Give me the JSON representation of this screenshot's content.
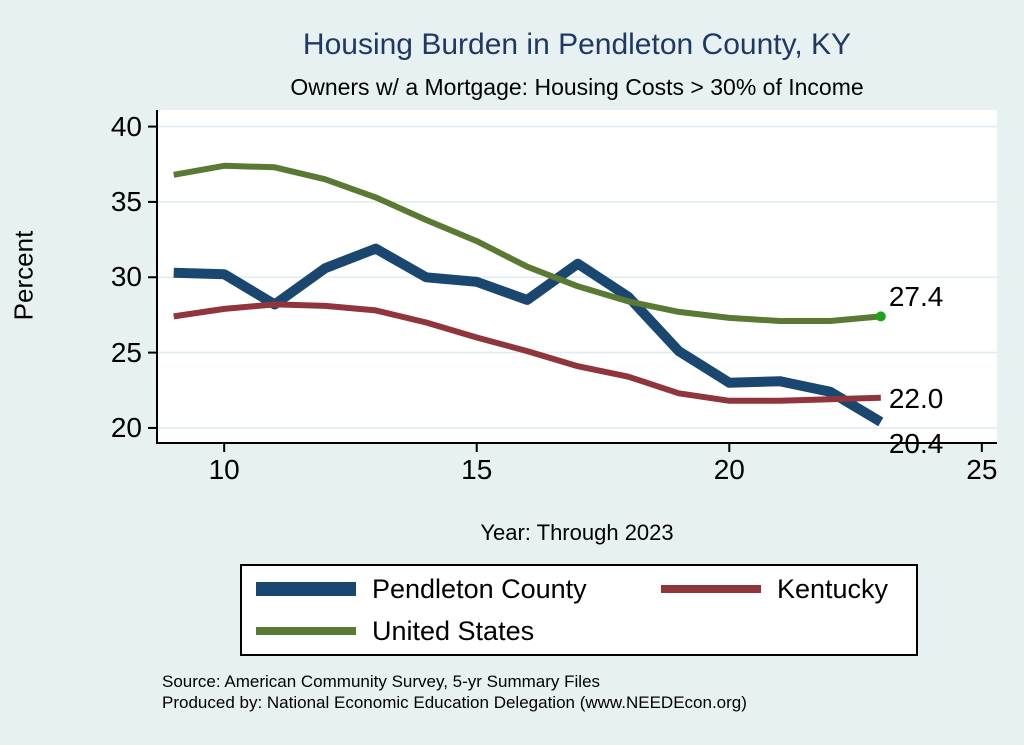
{
  "title": "Housing Burden in Pendleton County, KY",
  "subtitle": "Owners w/ a Mortgage: Housing Costs > 30% of Income",
  "chart_data": {
    "type": "line",
    "title": "Housing Burden in Pendleton County, KY",
    "subtitle": "Owners w/ a Mortgage: Housing Costs > 30% of Income",
    "xlabel": "Year: Through 2023",
    "ylabel": "Percent",
    "x": [
      9,
      10,
      11,
      12,
      13,
      14,
      15,
      16,
      17,
      18,
      19,
      20,
      21,
      22,
      23
    ],
    "x_ticks": [
      10,
      15,
      20,
      25
    ],
    "y_ticks": [
      20,
      25,
      30,
      35,
      40
    ],
    "xlim": [
      8.67,
      25.3
    ],
    "ylim": [
      19.0,
      41.1
    ],
    "grid": "horizontal",
    "legend_position": "bottom",
    "series": [
      {
        "name": "Pendleton County",
        "color": "#1a476f",
        "line_width": 10,
        "values": [
          30.3,
          30.2,
          28.2,
          30.6,
          31.9,
          30.0,
          29.7,
          28.5,
          30.9,
          28.7,
          25.1,
          23.0,
          23.1,
          22.4,
          20.4
        ],
        "end_label": "20.4",
        "end_label_dy": 22
      },
      {
        "name": "Kentucky",
        "color": "#90353b",
        "line_width": 6,
        "values": [
          27.4,
          27.9,
          28.2,
          28.1,
          27.8,
          27.0,
          26.0,
          25.1,
          24.1,
          23.4,
          22.3,
          21.8,
          21.8,
          21.9,
          22.0
        ],
        "end_label": "22.0",
        "end_label_dy": 1
      },
      {
        "name": "United States",
        "color": "#5a7a33",
        "line_width": 6,
        "values": [
          36.8,
          37.4,
          37.3,
          36.5,
          35.3,
          33.8,
          32.4,
          30.7,
          29.4,
          28.4,
          27.7,
          27.3,
          27.1,
          27.1,
          27.4
        ],
        "end_label": "27.4",
        "end_label_dy": -19,
        "end_marker_color": "#1ba31b",
        "end_marker_radius": 5
      }
    ]
  },
  "notes": {
    "line1": "Source: American Community Survey, 5-yr Summary Files",
    "line2": "Produced by: National Economic Education Delegation (www.NEEDEcon.org)"
  },
  "colors": {
    "background": "#e8f1f2",
    "plot_background": "#ffffff",
    "gridline": "#dfecf1",
    "axis": "#000000",
    "title": "#1f3864",
    "text": "#000000",
    "legend_background": "#ffffff",
    "legend_border": "#000000"
  }
}
